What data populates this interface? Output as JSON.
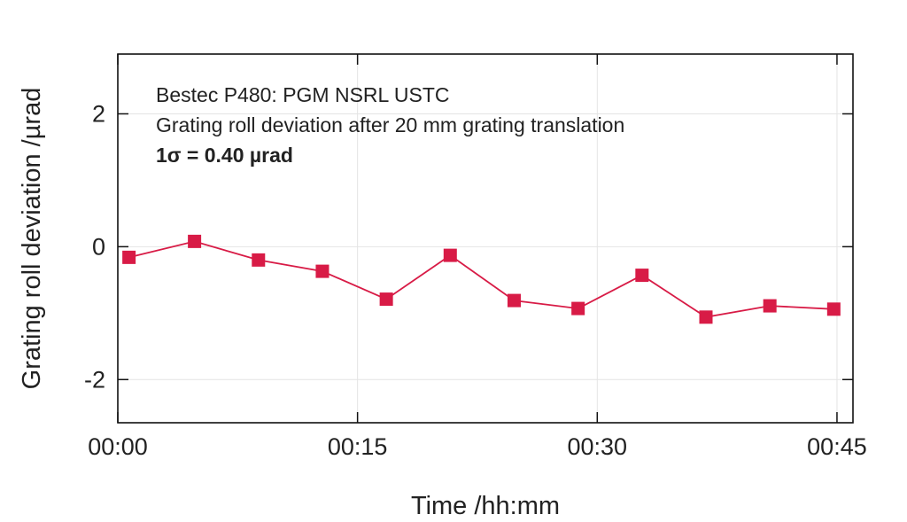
{
  "chart_data": {
    "type": "line",
    "xlabel": "Time /hh:mm",
    "ylabel": "Grating roll deviation /µrad",
    "x_unit": "minutes",
    "xlim": [
      0,
      46
    ],
    "ylim": [
      -2.65,
      2.9
    ],
    "x_ticks": [
      {
        "value": 0,
        "label": "00:00"
      },
      {
        "value": 15,
        "label": "00:15"
      },
      {
        "value": 30,
        "label": "00:30"
      },
      {
        "value": 45,
        "label": "00:45"
      }
    ],
    "y_ticks": [
      {
        "value": 2,
        "label": "2"
      },
      {
        "value": 0,
        "label": "0"
      },
      {
        "value": -2,
        "label": "-2"
      }
    ],
    "grid": true,
    "series": [
      {
        "color": "#d81b46",
        "marker": "square",
        "x": [
          0.7,
          4.8,
          8.8,
          12.8,
          16.8,
          20.8,
          24.8,
          28.8,
          32.8,
          36.8,
          40.8,
          44.8
        ],
        "y": [
          -0.16,
          0.08,
          -0.2,
          -0.37,
          -0.79,
          -0.13,
          -0.81,
          -0.93,
          -0.43,
          -1.06,
          -0.89,
          -0.94
        ]
      }
    ],
    "annotations": {
      "line1": "Bestec P480: PGM NSRL USTC",
      "line2": "Grating roll deviation after 20 mm grating translation",
      "line3": "1σ = 0.40 µrad"
    }
  }
}
